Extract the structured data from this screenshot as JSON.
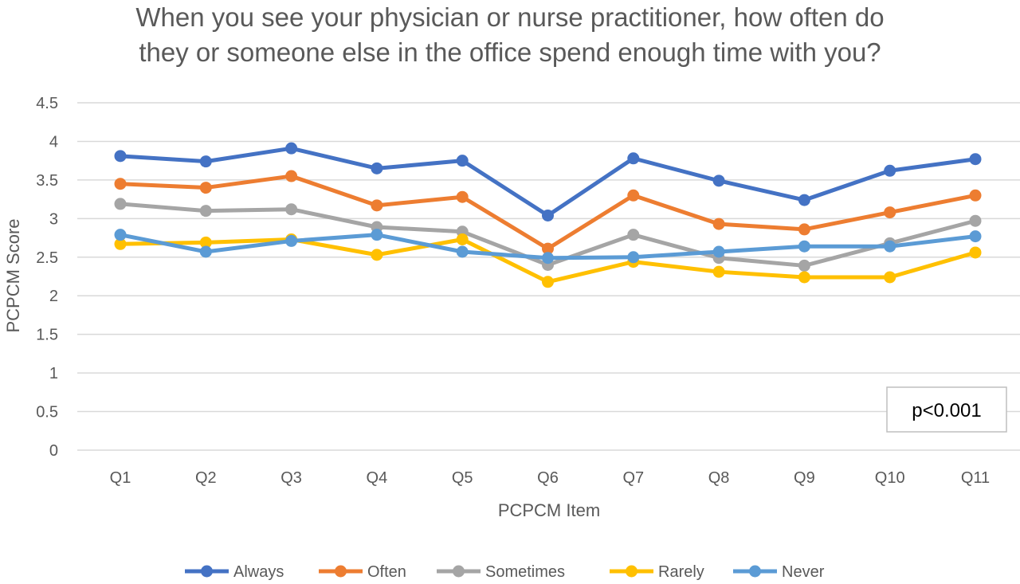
{
  "chart_data": {
    "type": "line",
    "title_lines": [
      "When you see your physician or nurse practitioner, how often do",
      "they or someone else in the office spend enough time with you?"
    ],
    "xlabel": "PCPCM Item",
    "ylabel": "PCPCM Score",
    "ylim": [
      0,
      4.5
    ],
    "yticks": [
      "0",
      "0.5",
      "1",
      "1.5",
      "2",
      "2.5",
      "3",
      "3.5",
      "4",
      "4.5"
    ],
    "categories": [
      "Q1",
      "Q2",
      "Q3",
      "Q4",
      "Q5",
      "Q6",
      "Q7",
      "Q8",
      "Q9",
      "Q10",
      "Q11"
    ],
    "grid": "horizontal",
    "legend_position": "bottom",
    "annotation": "p<0.001",
    "series": [
      {
        "name": "Always",
        "color": "#4472C4",
        "values": [
          3.81,
          3.74,
          3.91,
          3.65,
          3.75,
          3.04,
          3.78,
          3.49,
          3.24,
          3.62,
          3.77
        ]
      },
      {
        "name": "Often",
        "color": "#ED7D31",
        "values": [
          3.45,
          3.4,
          3.55,
          3.17,
          3.28,
          2.61,
          3.3,
          2.93,
          2.86,
          3.08,
          3.3
        ]
      },
      {
        "name": "Sometimes",
        "color": "#A5A5A5",
        "values": [
          3.19,
          3.1,
          3.12,
          2.89,
          2.83,
          2.4,
          2.79,
          2.49,
          2.39,
          2.68,
          2.97
        ]
      },
      {
        "name": "Rarely",
        "color": "#FFC000",
        "values": [
          2.67,
          2.69,
          2.73,
          2.53,
          2.73,
          2.18,
          2.44,
          2.31,
          2.24,
          2.24,
          2.56
        ]
      },
      {
        "name": "Never",
        "color": "#5B9BD5",
        "values": [
          2.79,
          2.57,
          2.71,
          2.79,
          2.57,
          2.49,
          2.5,
          2.57,
          2.64,
          2.64,
          2.77
        ]
      }
    ]
  }
}
